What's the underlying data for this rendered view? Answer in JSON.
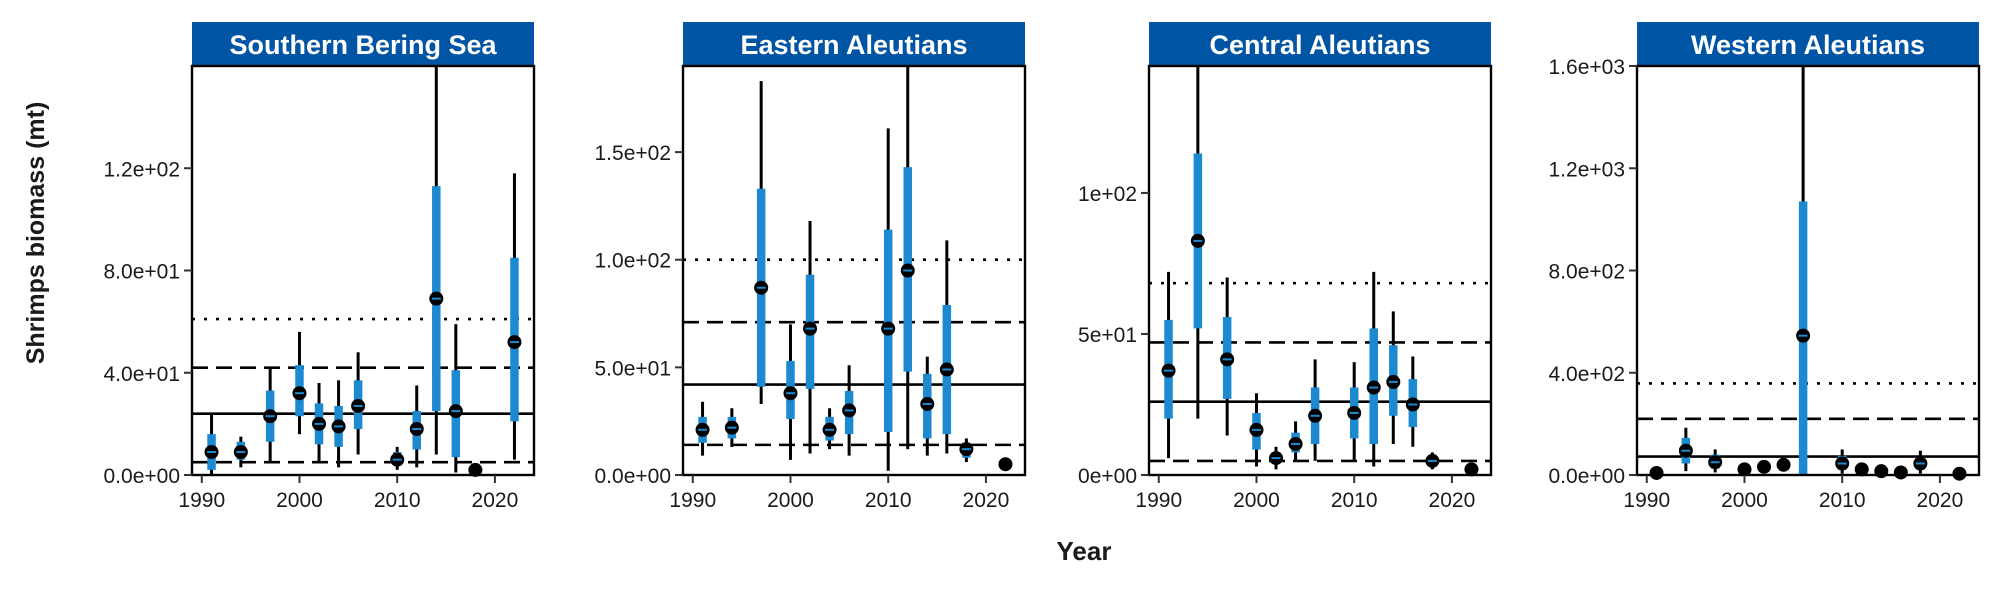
{
  "ylabel": "Shrimps biomass (mt)",
  "xlabel": "Year",
  "colors": {
    "header_bg": "#0054A4",
    "header_text": "#ffffff",
    "bar": "#1C8AD0",
    "whisker": "#000000",
    "point": "#000000"
  },
  "chart_data": [
    {
      "type": "scatter",
      "title": "Southern Bering Sea",
      "xlim": [
        1989,
        2024
      ],
      "ylim": [
        0,
        160
      ],
      "yticks": [
        0,
        40,
        80,
        120
      ],
      "ytick_labels": [
        "0.0e+00",
        "4.0e+01",
        "8.0e+01",
        "1.2e+02"
      ],
      "xticks": [
        1990,
        2000,
        2010,
        2020
      ],
      "xtick_labels": [
        "1990",
        "2000",
        "2010",
        "2020"
      ],
      "hlines": {
        "solid": 24,
        "dashed": [
          5,
          42
        ],
        "dotted": 61
      },
      "points": [
        {
          "x": 1991,
          "y": 9,
          "bar": [
            2,
            16
          ],
          "whisker": [
            0,
            24
          ]
        },
        {
          "x": 1994,
          "y": 9,
          "bar": [
            6,
            13
          ],
          "whisker": [
            3,
            15
          ]
        },
        {
          "x": 1997,
          "y": 23,
          "bar": [
            13,
            33
          ],
          "whisker": [
            5,
            42
          ]
        },
        {
          "x": 2000,
          "y": 32,
          "bar": [
            23,
            43
          ],
          "whisker": [
            16,
            56
          ]
        },
        {
          "x": 2002,
          "y": 20,
          "bar": [
            12,
            28
          ],
          "whisker": [
            5,
            36
          ]
        },
        {
          "x": 2004,
          "y": 19,
          "bar": [
            11,
            27
          ],
          "whisker": [
            3,
            37
          ]
        },
        {
          "x": 2006,
          "y": 27,
          "bar": [
            18,
            37
          ],
          "whisker": [
            8,
            48
          ]
        },
        {
          "x": 2010,
          "y": 6,
          "bar": [
            4,
            9
          ],
          "whisker": [
            2,
            11
          ]
        },
        {
          "x": 2012,
          "y": 18,
          "bar": [
            10,
            25
          ],
          "whisker": [
            3,
            35
          ]
        },
        {
          "x": 2014,
          "y": 69,
          "bar": [
            25,
            113
          ],
          "whisker": [
            8,
            160
          ]
        },
        {
          "x": 2016,
          "y": 25,
          "bar": [
            7,
            41
          ],
          "whisker": [
            1,
            59
          ]
        },
        {
          "x": 2018,
          "y": 2,
          "bar": null,
          "whisker": null
        },
        {
          "x": 2022,
          "y": 52,
          "bar": [
            21,
            85
          ],
          "whisker": [
            6,
            118
          ]
        }
      ]
    },
    {
      "type": "scatter",
      "title": "Eastern Aleutians",
      "xlim": [
        1989,
        2024
      ],
      "ylim": [
        0,
        190
      ],
      "yticks": [
        0,
        50,
        100,
        150
      ],
      "ytick_labels": [
        "0.0e+00",
        "5.0e+01",
        "1.0e+02",
        "1.5e+02"
      ],
      "xticks": [
        1990,
        2000,
        2010,
        2020
      ],
      "xtick_labels": [
        "1990",
        "2000",
        "2010",
        "2020"
      ],
      "hlines": {
        "solid": 42,
        "dashed": [
          14,
          71
        ],
        "dotted": 100
      },
      "points": [
        {
          "x": 1991,
          "y": 21,
          "bar": [
            15,
            27
          ],
          "whisker": [
            9,
            34
          ]
        },
        {
          "x": 1994,
          "y": 22,
          "bar": [
            17,
            27
          ],
          "whisker": [
            13,
            31
          ]
        },
        {
          "x": 1997,
          "y": 87,
          "bar": [
            41,
            133
          ],
          "whisker": [
            33,
            183
          ]
        },
        {
          "x": 2000,
          "y": 38,
          "bar": [
            26,
            53
          ],
          "whisker": [
            7,
            70
          ]
        },
        {
          "x": 2002,
          "y": 68,
          "bar": [
            40,
            93
          ],
          "whisker": [
            10,
            118
          ]
        },
        {
          "x": 2004,
          "y": 21,
          "bar": [
            16,
            27
          ],
          "whisker": [
            12,
            31
          ]
        },
        {
          "x": 2006,
          "y": 30,
          "bar": [
            19,
            39
          ],
          "whisker": [
            9,
            51
          ]
        },
        {
          "x": 2010,
          "y": 68,
          "bar": [
            20,
            114
          ],
          "whisker": [
            2,
            161
          ]
        },
        {
          "x": 2012,
          "y": 95,
          "bar": [
            48,
            143
          ],
          "whisker": [
            12,
            190
          ]
        },
        {
          "x": 2014,
          "y": 33,
          "bar": [
            17,
            47
          ],
          "whisker": [
            9,
            55
          ]
        },
        {
          "x": 2016,
          "y": 49,
          "bar": [
            19,
            79
          ],
          "whisker": [
            10,
            109
          ]
        },
        {
          "x": 2018,
          "y": 12,
          "bar": [
            8,
            15
          ],
          "whisker": [
            6,
            17
          ]
        },
        {
          "x": 2022,
          "y": 5,
          "bar": null,
          "whisker": null
        }
      ]
    },
    {
      "type": "scatter",
      "title": "Central Aleutians",
      "xlim": [
        1989,
        2024
      ],
      "ylim": [
        0,
        145
      ],
      "yticks": [
        0,
        50,
        100
      ],
      "ytick_labels": [
        "0e+00",
        "5e+01",
        "1e+02"
      ],
      "xticks": [
        1990,
        2000,
        2010,
        2020
      ],
      "xtick_labels": [
        "1990",
        "2000",
        "2010",
        "2020"
      ],
      "hlines": {
        "solid": 26,
        "dashed": [
          5,
          47
        ],
        "dotted": 68
      },
      "points": [
        {
          "x": 1991,
          "y": 37,
          "bar": [
            20,
            55
          ],
          "whisker": [
            6,
            72
          ]
        },
        {
          "x": 1994,
          "y": 83,
          "bar": [
            52,
            114
          ],
          "whisker": [
            20,
            145
          ]
        },
        {
          "x": 1997,
          "y": 41,
          "bar": [
            27,
            56
          ],
          "whisker": [
            14,
            70
          ]
        },
        {
          "x": 2000,
          "y": 16,
          "bar": [
            9,
            22
          ],
          "whisker": [
            3,
            29
          ]
        },
        {
          "x": 2002,
          "y": 6,
          "bar": [
            4,
            8
          ],
          "whisker": [
            2,
            10
          ]
        },
        {
          "x": 2004,
          "y": 11,
          "bar": [
            8,
            15
          ],
          "whisker": [
            5,
            19
          ]
        },
        {
          "x": 2006,
          "y": 21,
          "bar": [
            11,
            31
          ],
          "whisker": [
            5,
            41
          ]
        },
        {
          "x": 2010,
          "y": 22,
          "bar": [
            13,
            31
          ],
          "whisker": [
            5,
            40
          ]
        },
        {
          "x": 2012,
          "y": 31,
          "bar": [
            11,
            52
          ],
          "whisker": [
            3,
            72
          ]
        },
        {
          "x": 2014,
          "y": 33,
          "bar": [
            21,
            46
          ],
          "whisker": [
            11,
            58
          ]
        },
        {
          "x": 2016,
          "y": 25,
          "bar": [
            17,
            34
          ],
          "whisker": [
            10,
            42
          ]
        },
        {
          "x": 2018,
          "y": 5,
          "bar": [
            3,
            7
          ],
          "whisker": [
            2,
            8
          ]
        },
        {
          "x": 2022,
          "y": 2,
          "bar": null,
          "whisker": null
        }
      ]
    },
    {
      "type": "scatter",
      "title": "Western Aleutians",
      "xlim": [
        1989,
        2024
      ],
      "ylim": [
        0,
        1600
      ],
      "yticks": [
        0,
        400,
        800,
        1200,
        1600
      ],
      "ytick_labels": [
        "0.0e+00",
        "4.0e+02",
        "8.0e+02",
        "1.2e+03",
        "1.6e+03"
      ],
      "xticks": [
        1990,
        2000,
        2010,
        2020
      ],
      "xtick_labels": [
        "1990",
        "2000",
        "2010",
        "2020"
      ],
      "hlines": {
        "solid": 72,
        "dashed": [
          220
        ],
        "dotted": 358
      },
      "points": [
        {
          "x": 1991,
          "y": 8,
          "bar": null,
          "whisker": null
        },
        {
          "x": 1994,
          "y": 95,
          "bar": [
            45,
            145
          ],
          "whisker": [
            15,
            185
          ]
        },
        {
          "x": 1997,
          "y": 50,
          "bar": [
            25,
            80
          ],
          "whisker": [
            10,
            100
          ]
        },
        {
          "x": 2000,
          "y": 22,
          "bar": null,
          "whisker": null
        },
        {
          "x": 2002,
          "y": 32,
          "bar": null,
          "whisker": null
        },
        {
          "x": 2004,
          "y": 40,
          "bar": null,
          "whisker": null
        },
        {
          "x": 2006,
          "y": 545,
          "bar": [
            0,
            1070
          ],
          "whisker": [
            0,
            1600
          ]
        },
        {
          "x": 2010,
          "y": 45,
          "bar": [
            20,
            75
          ],
          "whisker": [
            5,
            100
          ]
        },
        {
          "x": 2012,
          "y": 22,
          "bar": null,
          "whisker": null
        },
        {
          "x": 2014,
          "y": 15,
          "bar": null,
          "whisker": null
        },
        {
          "x": 2016,
          "y": 10,
          "bar": null,
          "whisker": null
        },
        {
          "x": 2018,
          "y": 45,
          "bar": [
            20,
            70
          ],
          "whisker": [
            5,
            95
          ]
        },
        {
          "x": 2022,
          "y": 5,
          "bar": null,
          "whisker": null
        }
      ]
    }
  ]
}
